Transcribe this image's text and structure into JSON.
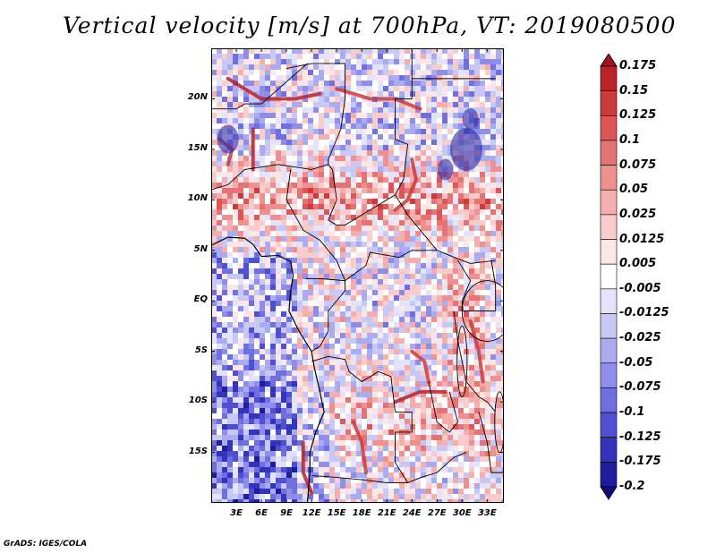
{
  "title": "Vertical velocity [m/s] at 700hPa, VT: 2019080500",
  "credit": "GrADS: IGES/COLA",
  "map": {
    "lon_range": [
      0,
      35
    ],
    "lat_range": [
      -20,
      25
    ],
    "lat_ticks": [
      {
        "label": "20N",
        "lat": 20
      },
      {
        "label": "15N",
        "lat": 15
      },
      {
        "label": "10N",
        "lat": 10
      },
      {
        "label": "5N",
        "lat": 5
      },
      {
        "label": "EQ",
        "lat": 0
      },
      {
        "label": "5S",
        "lat": -5
      },
      {
        "label": "10S",
        "lat": -10
      },
      {
        "label": "15S",
        "lat": -15
      }
    ],
    "lon_ticks": [
      {
        "label": "3E",
        "lon": 3
      },
      {
        "label": "6E",
        "lon": 6
      },
      {
        "label": "9E",
        "lon": 9
      },
      {
        "label": "12E",
        "lon": 12
      },
      {
        "label": "15E",
        "lon": 15
      },
      {
        "label": "18E",
        "lon": 18
      },
      {
        "label": "21E",
        "lon": 21
      },
      {
        "label": "24E",
        "lon": 24
      },
      {
        "label": "27E",
        "lon": 27
      },
      {
        "label": "30E",
        "lon": 30
      },
      {
        "label": "33E",
        "lon": 33
      }
    ]
  },
  "colorbar": {
    "labels": [
      "0.175",
      "0.15",
      "0.125",
      "0.1",
      "0.075",
      "0.05",
      "0.025",
      "0.0125",
      "0.005",
      "-0.005",
      "-0.0125",
      "-0.025",
      "-0.05",
      "-0.075",
      "-0.1",
      "-0.125",
      "-0.175",
      "-0.2"
    ],
    "colors": [
      "#a0141e",
      "#b92328",
      "#cc3b3b",
      "#db5757",
      "#e67373",
      "#ee9090",
      "#f4aeae",
      "#f9cccc",
      "#fce6e6",
      "#ffffff",
      "#e3e3fb",
      "#c8c8f6",
      "#ababf0",
      "#8e8eea",
      "#6f6fe0",
      "#4f4fd2",
      "#3333bb",
      "#1e1e9c",
      "#120a78"
    ]
  }
}
